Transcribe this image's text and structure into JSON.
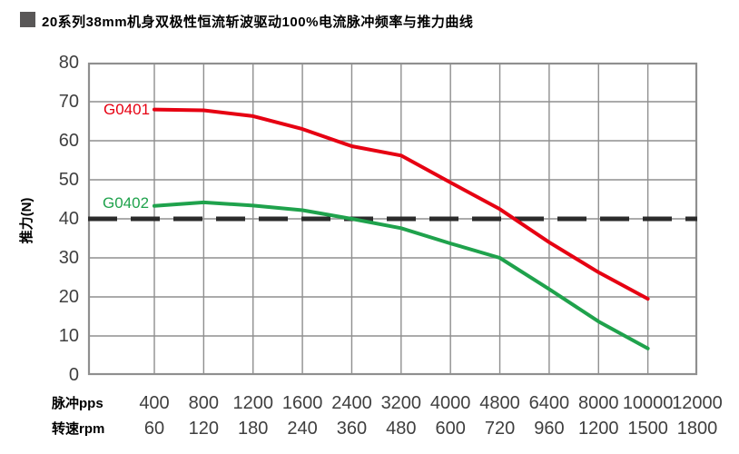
{
  "title": {
    "text": "20系列38mm机身双极性恒流斩波驱动100%电流脉冲频率与推力曲线",
    "bullet_color": "#595757"
  },
  "chart_data": {
    "type": "line",
    "title": "20系列38mm机身双极性恒流斩波驱动100%电流脉冲频率与推力曲线",
    "ylabel": "推力(N)",
    "ylim": [
      0,
      80
    ],
    "y_tick_step": 10,
    "y_ticks": [
      "80",
      "70",
      "60",
      "50",
      "40",
      "30",
      "20",
      "10",
      "0"
    ],
    "grid": true,
    "legend_position": "inline-left-of-curves",
    "x_axis_rows": [
      {
        "label": "脉冲pps",
        "values": [
          "400",
          "800",
          "1200",
          "1600",
          "2400",
          "3200",
          "4000",
          "4800",
          "6400",
          "8000",
          "10000",
          "12000"
        ]
      },
      {
        "label": "转速rpm",
        "values": [
          "60",
          "120",
          "180",
          "240",
          "360",
          "480",
          "600",
          "720",
          "960",
          "1200",
          "1500",
          "1800"
        ]
      }
    ],
    "series": [
      {
        "name": "G0401",
        "color": "#e60012",
        "x_pps": [
          400,
          800,
          1200,
          1600,
          2400,
          3200,
          4000,
          4800,
          6400,
          8000,
          10000
        ],
        "values": [
          68,
          67.8,
          66.3,
          63,
          58.6,
          56.2,
          49.3,
          42.5,
          34,
          26.3,
          19.5
        ]
      },
      {
        "name": "G0402",
        "color": "#1fa24c",
        "x_pps": [
          400,
          800,
          1200,
          1600,
          2400,
          3200,
          4000,
          4800,
          6400,
          8000,
          10000
        ],
        "values": [
          43.3,
          44.2,
          43.4,
          42.2,
          40,
          37.6,
          33.7,
          30,
          22,
          13.7,
          6.8
        ]
      }
    ],
    "reference_line": {
      "value": 40,
      "style": "dashed",
      "color": "#2b2b2b"
    },
    "grid_color": "#8f8f8f",
    "tick_text_color": "#3f3f3f"
  }
}
